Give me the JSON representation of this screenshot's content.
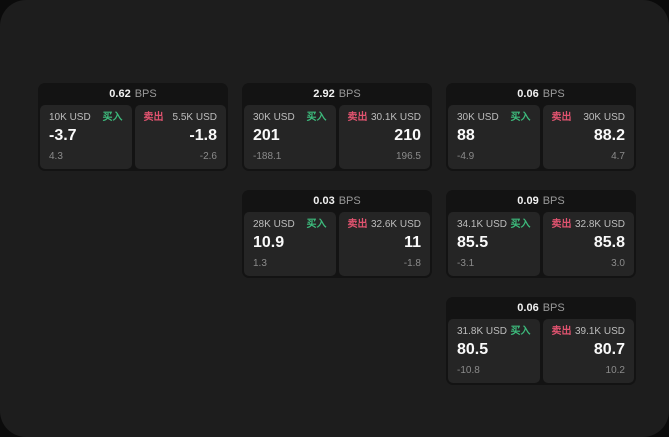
{
  "labels": {
    "buy": "买入",
    "sell": "卖出",
    "bps_unit": "BPS"
  },
  "colors": {
    "outer_bg": "#0b0b0b",
    "panel_bg": "#1d1d1d",
    "card_bg": "#131313",
    "cell_bg": "#252525",
    "buy_accent": "#3dbc7d",
    "sell_accent": "#e0536f",
    "value_text": "#fafafa",
    "amount_text": "#bdbdbd",
    "sub_text": "#8b8b8b"
  },
  "cards": [
    {
      "bps": "0.62",
      "buy": {
        "amount": "10K USD",
        "value": "-3.7",
        "sub": "4.3"
      },
      "sell": {
        "amount": "5.5K USD",
        "value": "-1.8",
        "sub": "-2.6"
      }
    },
    {
      "bps": "2.92",
      "buy": {
        "amount": "30K USD",
        "value": "201",
        "sub": "-188.1"
      },
      "sell": {
        "amount": "30.1K USD",
        "value": "210",
        "sub": "196.5"
      }
    },
    {
      "bps": "0.06",
      "buy": {
        "amount": "30K USD",
        "value": "88",
        "sub": "-4.9"
      },
      "sell": {
        "amount": "30K USD",
        "value": "88.2",
        "sub": "4.7"
      }
    },
    {
      "bps": "0.03",
      "buy": {
        "amount": "28K USD",
        "value": "10.9",
        "sub": "1.3"
      },
      "sell": {
        "amount": "32.6K USD",
        "value": "11",
        "sub": "-1.8"
      }
    },
    {
      "bps": "0.09",
      "buy": {
        "amount": "34.1K USD",
        "value": "85.5",
        "sub": "-3.1"
      },
      "sell": {
        "amount": "32.8K USD",
        "value": "85.8",
        "sub": "3.0"
      }
    },
    {
      "bps": "0.06",
      "buy": {
        "amount": "31.8K USD",
        "value": "80.5",
        "sub": "-10.8"
      },
      "sell": {
        "amount": "39.1K USD",
        "value": "80.7",
        "sub": "10.2"
      }
    }
  ]
}
